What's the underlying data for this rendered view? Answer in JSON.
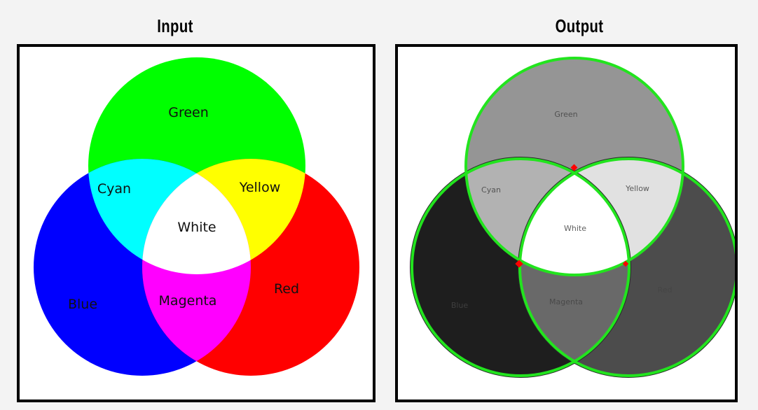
{
  "titles": {
    "input": "Input",
    "output": "Output"
  },
  "input_labels": {
    "green": "Green",
    "cyan": "Cyan",
    "yellow": "Yellow",
    "white": "White",
    "blue": "Blue",
    "magenta": "Magenta",
    "red": "Red"
  },
  "output_labels": {
    "green": "Green",
    "cyan": "Cyan",
    "yellow": "Yellow",
    "white": "White",
    "blue": "Blue",
    "magenta": "Magenta",
    "red": "Red"
  },
  "colors": {
    "green": "#00ff00",
    "blue": "#0000ff",
    "red": "#ff0000",
    "cyan": "#00ffff",
    "yellow": "#ffff00",
    "magenta": "#ff00ff",
    "white": "#ffffff",
    "out_green": "#959595",
    "out_blue": "#1e1e1e",
    "out_red": "#4c4c4c",
    "out_cyan": "#b2b2b2",
    "out_yellow": "#e1e1e1",
    "out_magenta": "#696969",
    "out_white": "#ffffff",
    "contour": "#22e41e",
    "corner_marker": "#ff0000"
  }
}
